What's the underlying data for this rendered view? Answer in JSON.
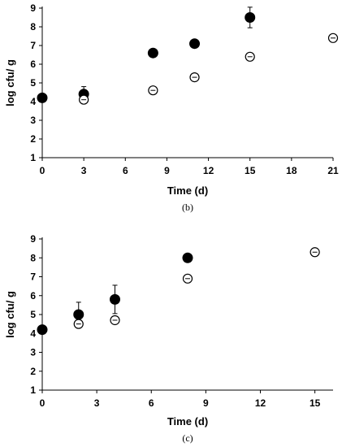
{
  "chart_data": [
    {
      "type": "scatter",
      "caption": "(b)",
      "xlabel": "Time (d)",
      "ylabel": "log cfu/ g",
      "xlim": [
        0,
        21
      ],
      "ylim": [
        1,
        9
      ],
      "xticks": [
        0,
        3,
        6,
        9,
        12,
        15,
        18,
        21
      ],
      "yticks": [
        1,
        2,
        3,
        4,
        5,
        6,
        7,
        8,
        9
      ],
      "grid": false,
      "series": [
        {
          "marker": "filled",
          "points": [
            {
              "x": 0,
              "y": 4.2,
              "err": 0.1
            },
            {
              "x": 3,
              "y": 4.4,
              "err": 0.4
            },
            {
              "x": 8,
              "y": 6.6,
              "err": 0.1
            },
            {
              "x": 11,
              "y": 7.1,
              "err": 0.1
            },
            {
              "x": 15,
              "y": 8.5,
              "err": 0.55
            }
          ]
        },
        {
          "marker": "open",
          "points": [
            {
              "x": 3,
              "y": 4.1,
              "err": 0.15
            },
            {
              "x": 8,
              "y": 4.6,
              "err": 0.15
            },
            {
              "x": 11,
              "y": 5.3,
              "err": 0.1
            },
            {
              "x": 15,
              "y": 6.4,
              "err": 0.2
            },
            {
              "x": 21,
              "y": 7.4,
              "err": 0.1
            }
          ]
        }
      ]
    },
    {
      "type": "scatter",
      "caption": "(c)",
      "xlabel": "Time (d)",
      "ylabel": "log cfu/ g",
      "xlim": [
        0,
        16
      ],
      "ylim": [
        1,
        9
      ],
      "xticks": [
        0,
        3,
        6,
        9,
        12,
        15
      ],
      "yticks": [
        1,
        2,
        3,
        4,
        5,
        6,
        7,
        8,
        9
      ],
      "grid": false,
      "series": [
        {
          "marker": "filled",
          "points": [
            {
              "x": 0,
              "y": 4.2,
              "err": 0.1
            },
            {
              "x": 2,
              "y": 5.0,
              "err": 0.65
            },
            {
              "x": 4,
              "y": 5.8,
              "err": 0.75
            },
            {
              "x": 8,
              "y": 8.0,
              "err": 0.1
            }
          ]
        },
        {
          "marker": "open",
          "points": [
            {
              "x": 2,
              "y": 4.5,
              "err": 0.2
            },
            {
              "x": 4,
              "y": 4.7,
              "err": 0.2
            },
            {
              "x": 8,
              "y": 6.9,
              "err": 0.1
            },
            {
              "x": 15,
              "y": 8.3,
              "err": 0.15
            }
          ]
        }
      ]
    }
  ]
}
